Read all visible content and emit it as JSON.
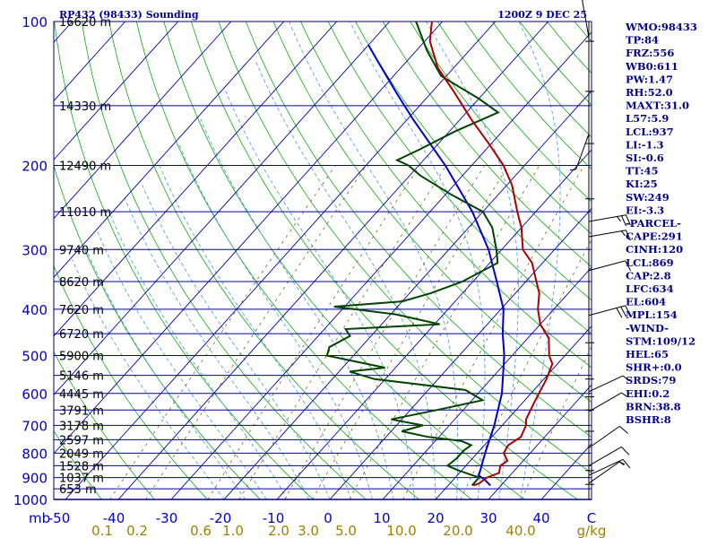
{
  "header": {
    "title": "RP432 (98433) Sounding",
    "time": "1200Z  9 DEC 25"
  },
  "chart_data": {
    "type": "skew-t",
    "pressure_ticks": [
      100,
      200,
      300,
      400,
      500,
      600,
      700,
      800,
      900,
      1000
    ],
    "pressure_unit": "mb",
    "temperature_ticks": [
      -50,
      -40,
      -30,
      -20,
      -10,
      0,
      10,
      20,
      30,
      40,
      "C"
    ],
    "mixing_ratio_labels": [
      "0.1",
      "0.2",
      "0.6",
      "1.0",
      "2.0",
      "3.0",
      "5.0",
      "10.0",
      "20.0",
      "40.0",
      "g/kg"
    ],
    "height_levels": [
      {
        "p": 100,
        "label": "16620 m"
      },
      {
        "p": 150,
        "label": "14330 m"
      },
      {
        "p": 200,
        "label": "12490 m"
      },
      {
        "p": 250,
        "label": "11010 m"
      },
      {
        "p": 300,
        "label": "9740 m"
      },
      {
        "p": 350,
        "label": "8620 m"
      },
      {
        "p": 400,
        "label": "7620 m"
      },
      {
        "p": 450,
        "label": "6720 m"
      },
      {
        "p": 500,
        "label": "5900 m"
      },
      {
        "p": 550,
        "label": "5146 m"
      },
      {
        "p": 600,
        "label": "4445 m"
      },
      {
        "p": 650,
        "label": "3791 m"
      },
      {
        "p": 700,
        "label": "3178 m"
      },
      {
        "p": 750,
        "label": "2597 m"
      },
      {
        "p": 800,
        "label": "2049 m"
      },
      {
        "p": 850,
        "label": "1528 m"
      },
      {
        "p": 900,
        "label": "1037 m"
      },
      {
        "p": 950,
        "label": "653 m"
      }
    ],
    "temperature_profile": [
      {
        "p": 935,
        "t": 24.8
      },
      {
        "p": 925,
        "t": 25.5
      },
      {
        "p": 900,
        "t": 26.0
      },
      {
        "p": 880,
        "t": 27.5
      },
      {
        "p": 850,
        "t": 26.5
      },
      {
        "p": 830,
        "t": 27.0
      },
      {
        "p": 800,
        "t": 25.0
      },
      {
        "p": 770,
        "t": 24.5
      },
      {
        "p": 740,
        "t": 25.5
      },
      {
        "p": 700,
        "t": 24.5
      },
      {
        "p": 680,
        "t": 23.5
      },
      {
        "p": 660,
        "t": 23.0
      },
      {
        "p": 640,
        "t": 22.5
      },
      {
        "p": 620,
        "t": 22.0
      },
      {
        "p": 600,
        "t": 21.5
      },
      {
        "p": 560,
        "t": 20.5
      },
      {
        "p": 520,
        "t": 19.0
      },
      {
        "p": 500,
        "t": 17.0
      },
      {
        "p": 460,
        "t": 14.0
      },
      {
        "p": 430,
        "t": 10.0
      },
      {
        "p": 400,
        "t": 7.0
      },
      {
        "p": 370,
        "t": 4.5
      },
      {
        "p": 350,
        "t": 2.0
      },
      {
        "p": 320,
        "t": -2.0
      },
      {
        "p": 300,
        "t": -6.0
      },
      {
        "p": 270,
        "t": -10.0
      },
      {
        "p": 250,
        "t": -13.5
      },
      {
        "p": 220,
        "t": -19.0
      },
      {
        "p": 200,
        "t": -24.0
      },
      {
        "p": 180,
        "t": -30.5
      },
      {
        "p": 160,
        "t": -38.0
      },
      {
        "p": 140,
        "t": -46.0
      },
      {
        "p": 125,
        "t": -53.0
      },
      {
        "p": 110,
        "t": -59.0
      },
      {
        "p": 100,
        "t": -62.0
      }
    ],
    "dewpoint_profile": [
      {
        "p": 935,
        "t": 24.5
      },
      {
        "p": 900,
        "t": 24.5
      },
      {
        "p": 870,
        "t": 19.5
      },
      {
        "p": 850,
        "t": 16.5
      },
      {
        "p": 820,
        "t": 17.0
      },
      {
        "p": 790,
        "t": 17.0
      },
      {
        "p": 770,
        "t": 17.5
      },
      {
        "p": 755,
        "t": 15.0
      },
      {
        "p": 740,
        "t": 8.0
      },
      {
        "p": 720,
        "t": 2.0
      },
      {
        "p": 700,
        "t": 5.0
      },
      {
        "p": 680,
        "t": -2.0
      },
      {
        "p": 650,
        "t": 5.0
      },
      {
        "p": 620,
        "t": 12.0
      },
      {
        "p": 590,
        "t": 7.0
      },
      {
        "p": 560,
        "t": -12.0
      },
      {
        "p": 540,
        "t": -18.0
      },
      {
        "p": 530,
        "t": -12.0
      },
      {
        "p": 500,
        "t": -25.0
      },
      {
        "p": 480,
        "t": -26.0
      },
      {
        "p": 455,
        "t": -24.0
      },
      {
        "p": 440,
        "t": -26.0
      },
      {
        "p": 430,
        "t": -9.0
      },
      {
        "p": 410,
        "t": -19.0
      },
      {
        "p": 395,
        "t": -32.0
      },
      {
        "p": 385,
        "t": -20.0
      },
      {
        "p": 370,
        "t": -16.0
      },
      {
        "p": 350,
        "t": -12.0
      },
      {
        "p": 320,
        "t": -8.5
      },
      {
        "p": 300,
        "t": -11.0
      },
      {
        "p": 270,
        "t": -15.5
      },
      {
        "p": 250,
        "t": -20.0
      },
      {
        "p": 230,
        "t": -29.0
      },
      {
        "p": 210,
        "t": -38.0
      },
      {
        "p": 200,
        "t": -42.0
      },
      {
        "p": 195,
        "t": -45.0
      },
      {
        "p": 185,
        "t": -42.5
      },
      {
        "p": 170,
        "t": -39.0
      },
      {
        "p": 155,
        "t": -34.0
      },
      {
        "p": 145,
        "t": -40.0
      },
      {
        "p": 130,
        "t": -51.0
      },
      {
        "p": 115,
        "t": -58.0
      },
      {
        "p": 100,
        "t": -65.0
      }
    ],
    "parcel_profile": [
      {
        "p": 935,
        "t": 28.0
      },
      {
        "p": 910,
        "t": 26.0
      },
      {
        "p": 890,
        "t": 24.0
      },
      {
        "p": 869,
        "t": 23.5
      },
      {
        "p": 800,
        "t": 21.5
      },
      {
        "p": 700,
        "t": 18.5
      },
      {
        "p": 600,
        "t": 14.5
      },
      {
        "p": 500,
        "t": 8.5
      },
      {
        "p": 450,
        "t": 4.5
      },
      {
        "p": 400,
        "t": 0.5
      },
      {
        "p": 350,
        "t": -5.5
      },
      {
        "p": 300,
        "t": -12.5
      },
      {
        "p": 250,
        "t": -22.0
      },
      {
        "p": 200,
        "t": -35.0
      },
      {
        "p": 160,
        "t": -49.0
      },
      {
        "p": 140,
        "t": -57.0
      },
      {
        "p": 120,
        "t": -66.0
      },
      {
        "p": 112,
        "t": -70.0
      }
    ],
    "wind_barbs": [
      {
        "p": 108,
        "dir": 350,
        "spd": 5
      },
      {
        "p": 172,
        "dir": 200,
        "spd": 5
      },
      {
        "p": 262,
        "dir": 80,
        "spd": 25
      },
      {
        "p": 282,
        "dir": 80,
        "spd": 15
      },
      {
        "p": 332,
        "dir": 75,
        "spd": 10
      },
      {
        "p": 412,
        "dir": 75,
        "spd": 30
      },
      {
        "p": 595,
        "dir": 65,
        "spd": 5
      },
      {
        "p": 655,
        "dir": 60,
        "spd": 5
      },
      {
        "p": 780,
        "dir": 55,
        "spd": 10
      },
      {
        "p": 850,
        "dir": 60,
        "spd": 10
      },
      {
        "p": 890,
        "dir": 65,
        "spd": 15
      },
      {
        "p": 925,
        "dir": 55,
        "spd": 5
      }
    ]
  },
  "indices": [
    "WMO:98433",
    "TP:84",
    "FRZ:556",
    "WB0:611",
    "PW:1.47",
    "RH:52.0",
    "MAXT:31.0",
    "L57:5.9",
    "LCL:937",
    "LI:-1.3",
    "SI:-0.6",
    "TT:45",
    "KI:25",
    "SW:249",
    "EI:-3.3",
    "-PARCEL-",
    "CAPE:291",
    "CINH:120",
    "LCL:869",
    "CAP:2.8",
    "LFC:634",
    "EL:604",
    "MPL:154",
    "-WIND-",
    "STM:109/12",
    "HEL:65",
    "SHR+:0.0",
    "SRDS:79",
    "EHI:0.2",
    "BRN:38.8",
    "BSHR:8"
  ],
  "colors": {
    "title": "#0000a0",
    "axis_text": "#0000cc",
    "mixing_text": "#a08000",
    "isobar": "#0000aa",
    "isotherm": "#0000aa",
    "dry_adiabat": "#11aa11",
    "moist_adiabat": "#5aa0e0",
    "mixing_line": "#806020",
    "temperature": "#aa0000",
    "dewpoint": "#004400",
    "parcel": "#0000cc",
    "wind": "#000000",
    "index_text": "#000090"
  }
}
